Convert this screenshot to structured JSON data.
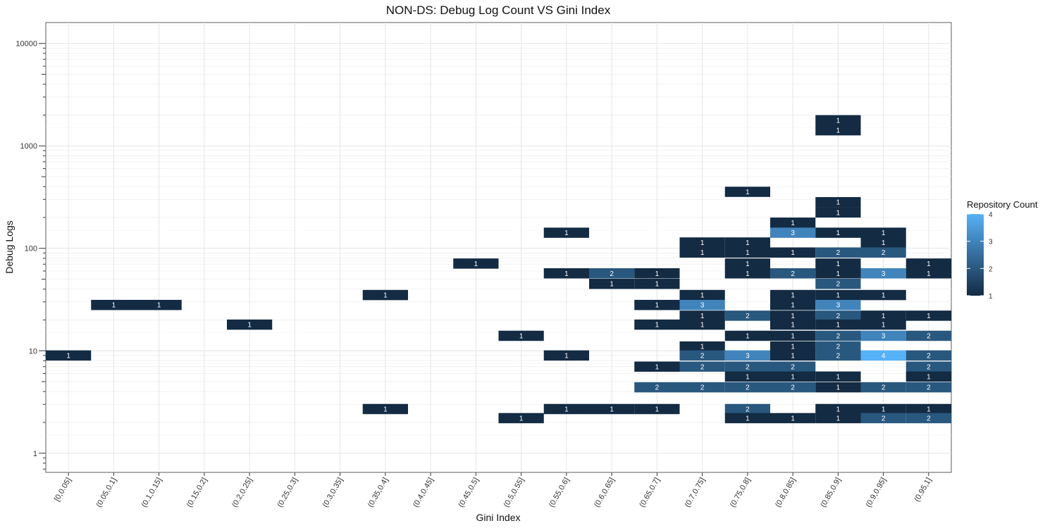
{
  "chart_data": {
    "type": "heatmap",
    "title": "NON-DS: Debug Log Count VS Gini Index",
    "xlabel": "Gini Index",
    "ylabel": "Debug Logs",
    "y_scale": "log10",
    "ylim": [
      0.65,
      16000
    ],
    "y_ticks": [
      1,
      10,
      100,
      1000,
      10000
    ],
    "y_tick_labels": [
      "1",
      "10",
      "100",
      "1000",
      "10000"
    ],
    "categories": [
      "[0,0.05]",
      "(0.05,0.1]",
      "(0.1,0.15]",
      "(0.15,0.2]",
      "(0.2,0.25]",
      "(0.25,0.3]",
      "(0.3,0.35]",
      "(0.35,0.4]",
      "(0.4,0.45]",
      "(0.45,0.5]",
      "(0.5,0.55]",
      "(0.55,0.6]",
      "(0.6,0.65]",
      "(0.65,0.7]",
      "(0.7,0.75]",
      "(0.75,0.8]",
      "(0.8,0.85]",
      "(0.85,0.9]",
      "(0.9,0.95]",
      "(0.95,1]"
    ],
    "grid": true,
    "legend": {
      "title": "Repository Count",
      "position": "right",
      "min": 1,
      "max": 4,
      "breaks": [
        1,
        2,
        3,
        4
      ],
      "break_labels": [
        "1",
        "2",
        "3",
        "4"
      ],
      "low_color": "#132B43",
      "high_color": "#56B1F7"
    },
    "cells": [
      {
        "x": "[0,0.05]",
        "y": 9,
        "count": 1
      },
      {
        "x": "(0.05,0.1]",
        "y": 28,
        "count": 1
      },
      {
        "x": "(0.1,0.15]",
        "y": 28,
        "count": 1
      },
      {
        "x": "(0.2,0.25]",
        "y": 18,
        "count": 1
      },
      {
        "x": "(0.35,0.4]",
        "y": 35,
        "count": 1
      },
      {
        "x": "(0.35,0.4]",
        "y": 2.7,
        "count": 1
      },
      {
        "x": "(0.45,0.5]",
        "y": 71,
        "count": 1
      },
      {
        "x": "(0.5,0.55]",
        "y": 14,
        "count": 1
      },
      {
        "x": "(0.5,0.55]",
        "y": 2.2,
        "count": 1
      },
      {
        "x": "(0.55,0.6]",
        "y": 142,
        "count": 1
      },
      {
        "x": "(0.55,0.6]",
        "y": 57,
        "count": 1
      },
      {
        "x": "(0.55,0.6]",
        "y": 9,
        "count": 1
      },
      {
        "x": "(0.55,0.6]",
        "y": 2.7,
        "count": 1
      },
      {
        "x": "(0.6,0.65]",
        "y": 57,
        "count": 2
      },
      {
        "x": "(0.6,0.65]",
        "y": 45,
        "count": 1
      },
      {
        "x": "(0.6,0.65]",
        "y": 2.7,
        "count": 1
      },
      {
        "x": "(0.65,0.7]",
        "y": 57,
        "count": 1
      },
      {
        "x": "(0.65,0.7]",
        "y": 45,
        "count": 1
      },
      {
        "x": "(0.65,0.7]",
        "y": 28,
        "count": 1
      },
      {
        "x": "(0.65,0.7]",
        "y": 18,
        "count": 1
      },
      {
        "x": "(0.65,0.7]",
        "y": 7,
        "count": 1
      },
      {
        "x": "(0.65,0.7]",
        "y": 4.4,
        "count": 2
      },
      {
        "x": "(0.65,0.7]",
        "y": 2.7,
        "count": 1
      },
      {
        "x": "(0.7,0.75]",
        "y": 114,
        "count": 1
      },
      {
        "x": "(0.7,0.75]",
        "y": 91,
        "count": 1
      },
      {
        "x": "(0.7,0.75]",
        "y": 35,
        "count": 1
      },
      {
        "x": "(0.7,0.75]",
        "y": 28,
        "count": 3
      },
      {
        "x": "(0.7,0.75]",
        "y": 22,
        "count": 1
      },
      {
        "x": "(0.7,0.75]",
        "y": 18,
        "count": 1
      },
      {
        "x": "(0.7,0.75]",
        "y": 11,
        "count": 1
      },
      {
        "x": "(0.7,0.75]",
        "y": 9,
        "count": 2
      },
      {
        "x": "(0.7,0.75]",
        "y": 7,
        "count": 2
      },
      {
        "x": "(0.7,0.75]",
        "y": 4.4,
        "count": 2
      },
      {
        "x": "(0.75,0.8]",
        "y": 356,
        "count": 1
      },
      {
        "x": "(0.75,0.8]",
        "y": 114,
        "count": 1
      },
      {
        "x": "(0.75,0.8]",
        "y": 91,
        "count": 1
      },
      {
        "x": "(0.75,0.8]",
        "y": 71,
        "count": 1
      },
      {
        "x": "(0.75,0.8]",
        "y": 57,
        "count": 1
      },
      {
        "x": "(0.75,0.8]",
        "y": 22,
        "count": 2
      },
      {
        "x": "(0.75,0.8]",
        "y": 14,
        "count": 1
      },
      {
        "x": "(0.75,0.8]",
        "y": 9,
        "count": 3
      },
      {
        "x": "(0.75,0.8]",
        "y": 7,
        "count": 2
      },
      {
        "x": "(0.75,0.8]",
        "y": 5.6,
        "count": 1
      },
      {
        "x": "(0.75,0.8]",
        "y": 4.4,
        "count": 2
      },
      {
        "x": "(0.75,0.8]",
        "y": 2.7,
        "count": 2
      },
      {
        "x": "(0.75,0.8]",
        "y": 2.2,
        "count": 1
      },
      {
        "x": "(0.8,0.85]",
        "y": 178,
        "count": 1
      },
      {
        "x": "(0.8,0.85]",
        "y": 142,
        "count": 3
      },
      {
        "x": "(0.8,0.85]",
        "y": 91,
        "count": 1
      },
      {
        "x": "(0.8,0.85]",
        "y": 57,
        "count": 2
      },
      {
        "x": "(0.8,0.85]",
        "y": 35,
        "count": 1
      },
      {
        "x": "(0.8,0.85]",
        "y": 28,
        "count": 1
      },
      {
        "x": "(0.8,0.85]",
        "y": 22,
        "count": 1
      },
      {
        "x": "(0.8,0.85]",
        "y": 18,
        "count": 1
      },
      {
        "x": "(0.8,0.85]",
        "y": 14,
        "count": 1
      },
      {
        "x": "(0.8,0.85]",
        "y": 11,
        "count": 1
      },
      {
        "x": "(0.8,0.85]",
        "y": 9,
        "count": 1
      },
      {
        "x": "(0.8,0.85]",
        "y": 7,
        "count": 2
      },
      {
        "x": "(0.8,0.85]",
        "y": 5.6,
        "count": 1
      },
      {
        "x": "(0.8,0.85]",
        "y": 4.4,
        "count": 2
      },
      {
        "x": "(0.8,0.85]",
        "y": 2.2,
        "count": 1
      },
      {
        "x": "(0.85,0.9]",
        "y": 1780,
        "count": 1
      },
      {
        "x": "(0.85,0.9]",
        "y": 1420,
        "count": 1
      },
      {
        "x": "(0.85,0.9]",
        "y": 282,
        "count": 1
      },
      {
        "x": "(0.85,0.9]",
        "y": 224,
        "count": 1
      },
      {
        "x": "(0.85,0.9]",
        "y": 142,
        "count": 1
      },
      {
        "x": "(0.85,0.9]",
        "y": 91,
        "count": 2
      },
      {
        "x": "(0.85,0.9]",
        "y": 71,
        "count": 1
      },
      {
        "x": "(0.85,0.9]",
        "y": 57,
        "count": 1
      },
      {
        "x": "(0.85,0.9]",
        "y": 45,
        "count": 2
      },
      {
        "x": "(0.85,0.9]",
        "y": 35,
        "count": 1
      },
      {
        "x": "(0.85,0.9]",
        "y": 28,
        "count": 3
      },
      {
        "x": "(0.85,0.9]",
        "y": 22,
        "count": 2
      },
      {
        "x": "(0.85,0.9]",
        "y": 18,
        "count": 1
      },
      {
        "x": "(0.85,0.9]",
        "y": 14,
        "count": 2
      },
      {
        "x": "(0.85,0.9]",
        "y": 11,
        "count": 2
      },
      {
        "x": "(0.85,0.9]",
        "y": 9,
        "count": 2
      },
      {
        "x": "(0.85,0.9]",
        "y": 5.6,
        "count": 1
      },
      {
        "x": "(0.85,0.9]",
        "y": 4.4,
        "count": 1
      },
      {
        "x": "(0.85,0.9]",
        "y": 2.7,
        "count": 1
      },
      {
        "x": "(0.85,0.9]",
        "y": 2.2,
        "count": 1
      },
      {
        "x": "(0.9,0.95]",
        "y": 142,
        "count": 1
      },
      {
        "x": "(0.9,0.95]",
        "y": 114,
        "count": 1
      },
      {
        "x": "(0.9,0.95]",
        "y": 91,
        "count": 2
      },
      {
        "x": "(0.9,0.95]",
        "y": 57,
        "count": 3
      },
      {
        "x": "(0.9,0.95]",
        "y": 35,
        "count": 1
      },
      {
        "x": "(0.9,0.95]",
        "y": 22,
        "count": 1
      },
      {
        "x": "(0.9,0.95]",
        "y": 18,
        "count": 1
      },
      {
        "x": "(0.9,0.95]",
        "y": 14,
        "count": 3
      },
      {
        "x": "(0.9,0.95]",
        "y": 9,
        "count": 4
      },
      {
        "x": "(0.9,0.95]",
        "y": 4.4,
        "count": 2
      },
      {
        "x": "(0.9,0.95]",
        "y": 2.7,
        "count": 1
      },
      {
        "x": "(0.9,0.95]",
        "y": 2.2,
        "count": 2
      },
      {
        "x": "(0.95,1]",
        "y": 71,
        "count": 1
      },
      {
        "x": "(0.95,1]",
        "y": 57,
        "count": 1
      },
      {
        "x": "(0.95,1]",
        "y": 22,
        "count": 1
      },
      {
        "x": "(0.95,1]",
        "y": 14,
        "count": 2
      },
      {
        "x": "(0.95,1]",
        "y": 9,
        "count": 2
      },
      {
        "x": "(0.95,1]",
        "y": 7,
        "count": 2
      },
      {
        "x": "(0.95,1]",
        "y": 5.6,
        "count": 1
      },
      {
        "x": "(0.95,1]",
        "y": 4.4,
        "count": 2
      },
      {
        "x": "(0.95,1]",
        "y": 2.7,
        "count": 1
      },
      {
        "x": "(0.95,1]",
        "y": 2.2,
        "count": 2
      }
    ]
  }
}
